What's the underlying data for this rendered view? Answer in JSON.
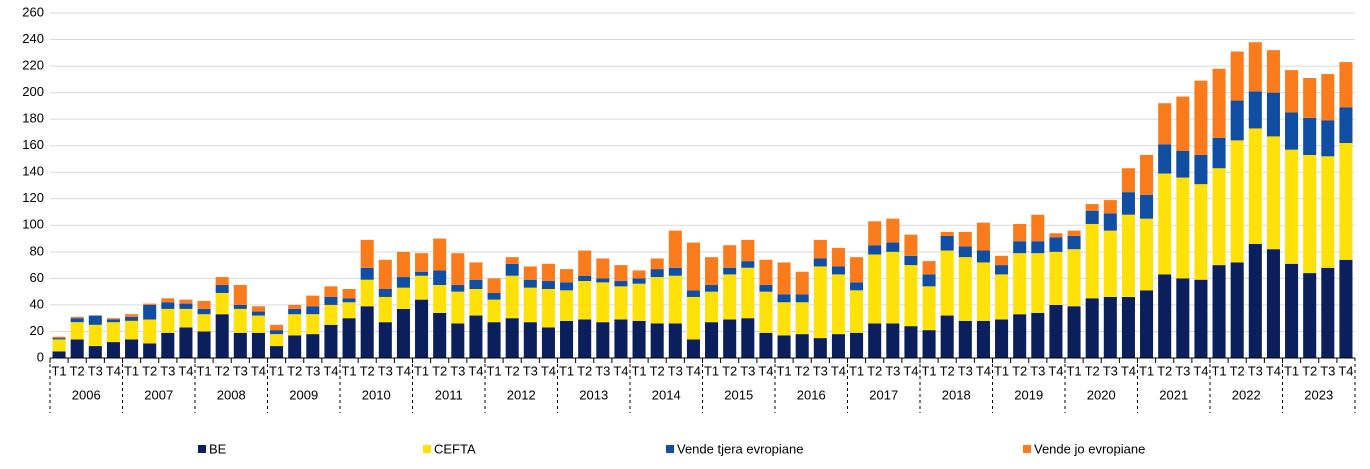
{
  "chart_data": {
    "type": "stacked_bar",
    "categories": [
      "T1",
      "T2",
      "T3",
      "T4",
      "T1",
      "T2",
      "T3",
      "T4",
      "T1",
      "T2",
      "T3",
      "T4",
      "T1",
      "T2",
      "T3",
      "T4",
      "T1",
      "T2",
      "T3",
      "T4",
      "T1",
      "T2",
      "T3",
      "T4",
      "T1",
      "T2",
      "T3",
      "T4",
      "T1",
      "T2",
      "T3",
      "T4",
      "T1",
      "T2",
      "T3",
      "T4",
      "T1",
      "T2",
      "T3",
      "T4",
      "T1",
      "T2",
      "T3",
      "T4",
      "T1",
      "T2",
      "T3",
      "T4",
      "T1",
      "T2",
      "T3",
      "T4",
      "T1",
      "T2",
      "T3",
      "T4",
      "T1",
      "T2",
      "T3",
      "T4",
      "T1",
      "T2",
      "T3",
      "T4",
      "T1",
      "T2",
      "T3",
      "T4",
      "T1",
      "T2",
      "T3",
      "T4"
    ],
    "years": [
      "2006",
      "2007",
      "2008",
      "2009",
      "2010",
      "2011",
      "2012",
      "2013",
      "2014",
      "2015",
      "2016",
      "2017",
      "2018",
      "2019",
      "2020",
      "2021",
      "2022",
      "2023"
    ],
    "series": [
      {
        "name": "BE",
        "color": "#0b1f5c",
        "values": [
          5,
          14,
          9,
          12,
          14,
          11,
          19,
          23,
          20,
          33,
          19,
          19,
          9,
          17,
          18,
          25,
          30,
          39,
          27,
          37,
          44,
          34,
          26,
          32,
          27,
          30,
          27,
          23,
          28,
          29,
          27,
          29,
          28,
          26,
          26,
          14,
          27,
          29,
          30,
          19,
          17,
          18,
          15,
          18,
          19,
          26,
          26,
          24,
          21,
          32,
          28,
          28,
          29,
          33,
          34,
          40,
          39,
          45,
          46,
          46,
          51,
          63,
          60,
          59,
          70,
          72,
          86,
          82,
          71,
          64,
          68,
          74
        ]
      },
      {
        "name": "CEFTA",
        "color": "#ffe10a",
        "values": [
          9,
          13,
          16,
          15,
          14,
          18,
          18,
          14,
          13,
          16,
          18,
          13,
          9,
          16,
          15,
          15,
          12,
          20,
          19,
          16,
          18,
          21,
          24,
          20,
          17,
          32,
          26,
          29,
          23,
          29,
          30,
          25,
          28,
          35,
          36,
          32,
          23,
          34,
          38,
          31,
          25,
          24,
          54,
          45,
          32,
          52,
          54,
          46,
          33,
          49,
          48,
          44,
          34,
          46,
          45,
          40,
          43,
          56,
          50,
          62,
          54,
          76,
          76,
          72,
          73,
          92,
          87,
          85,
          86,
          89,
          84,
          88
        ]
      },
      {
        "name": "Vende tjera evropiane",
        "color": "#0f4ea3",
        "values": [
          1,
          3,
          7,
          2,
          3,
          11,
          5,
          4,
          4,
          6,
          3,
          3,
          3,
          4,
          6,
          6,
          3,
          9,
          6,
          8,
          3,
          11,
          5,
          7,
          5,
          9,
          6,
          6,
          6,
          4,
          3,
          4,
          4,
          6,
          6,
          5,
          5,
          5,
          5,
          5,
          6,
          6,
          6,
          6,
          6,
          7,
          7,
          7,
          9,
          11,
          8,
          9,
          7,
          9,
          9,
          11,
          10,
          10,
          13,
          17,
          18,
          22,
          20,
          22,
          23,
          30,
          28,
          33,
          28,
          28,
          27,
          27
        ]
      },
      {
        "name": "Vende jo evropiane",
        "color": "#fa7b1c",
        "values": [
          1,
          1,
          0,
          1,
          2,
          1,
          3,
          3,
          6,
          6,
          15,
          4,
          4,
          3,
          8,
          8,
          7,
          21,
          22,
          19,
          14,
          24,
          24,
          13,
          11,
          5,
          10,
          13,
          10,
          19,
          15,
          12,
          6,
          8,
          28,
          36,
          21,
          17,
          16,
          19,
          24,
          17,
          14,
          14,
          19,
          18,
          18,
          16,
          10,
          3,
          11,
          21,
          7,
          13,
          20,
          3,
          4,
          5,
          10,
          18,
          30,
          31,
          41,
          56,
          52,
          37,
          37,
          32,
          32,
          30,
          35,
          34
        ]
      }
    ],
    "ylim": [
      0,
      260
    ],
    "yticks": [
      0,
      20,
      40,
      60,
      80,
      100,
      120,
      140,
      160,
      180,
      200,
      220,
      240,
      260
    ],
    "grid": true
  }
}
